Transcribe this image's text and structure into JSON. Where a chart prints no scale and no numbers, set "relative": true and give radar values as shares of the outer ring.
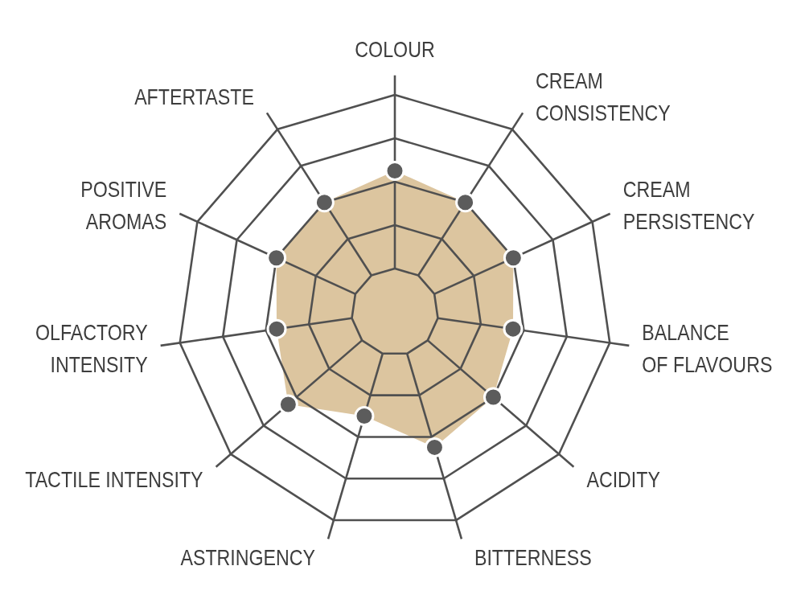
{
  "chart_data": {
    "type": "radar",
    "relative": true,
    "grid": true,
    "marker": "circle",
    "categories": [
      "COLOUR",
      "CREAM\nCONSISTENCY",
      "CREAM\nPERSISTENCY",
      "BALANCE\nOF FLAVOURS",
      "ACIDITY",
      "BITTERNESS",
      "ASTRINGENCY",
      "TACTILE INTENSITY",
      "OLFACTORY\nINTENSITY",
      "POSITIVE\nAROMAS",
      "AFTERTASTE"
    ],
    "series": [
      {
        "color": "#dcc59f",
        "values": [
          0.65,
          0.6,
          0.6,
          0.55,
          0.6,
          0.65,
          0.5,
          0.65,
          0.55,
          0.6,
          0.6
        ]
      }
    ]
  }
}
